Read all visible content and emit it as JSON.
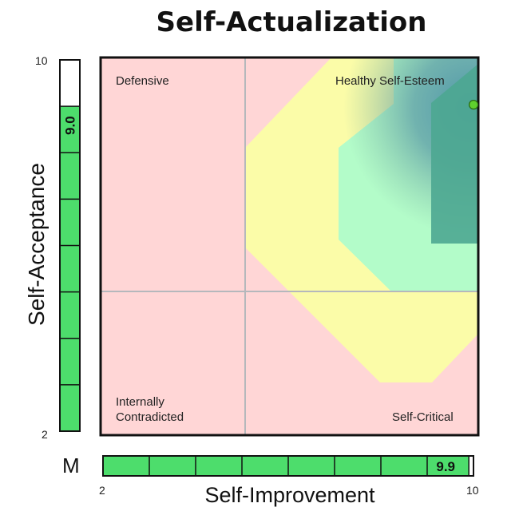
{
  "chart_data": {
    "type": "scatter",
    "title": "Self-Actualization",
    "xlabel": "Self-Improvement",
    "ylabel": "Self-Acceptance",
    "xlim": [
      2,
      10
    ],
    "ylim": [
      2,
      10
    ],
    "x_ticks": [
      "2",
      "10"
    ],
    "y_ticks": [
      "10",
      "2"
    ],
    "quadrants": {
      "top_left": "Defensive",
      "top_right": "Healthy Self-Esteem",
      "bottom_left_line1": "Internally",
      "bottom_left_line2": "Contradicted",
      "bottom_right": "Self-Critical"
    },
    "point": {
      "x": 9.9,
      "y": 9.0
    },
    "x_bar": {
      "prefix": "M",
      "value": 9.9,
      "value_label": "9.9",
      "segments": 8
    },
    "y_bar": {
      "value": 9.0,
      "value_label": "9.0",
      "segments": 8
    },
    "colors": {
      "red_zone": "#ffd6d6",
      "yellow_zone": "#fbfca8",
      "green_zone": "#b3fcc9",
      "dark_zone": "#4ca791",
      "bar_fill": "#4ddd6c",
      "point": "#5fd02e"
    }
  }
}
